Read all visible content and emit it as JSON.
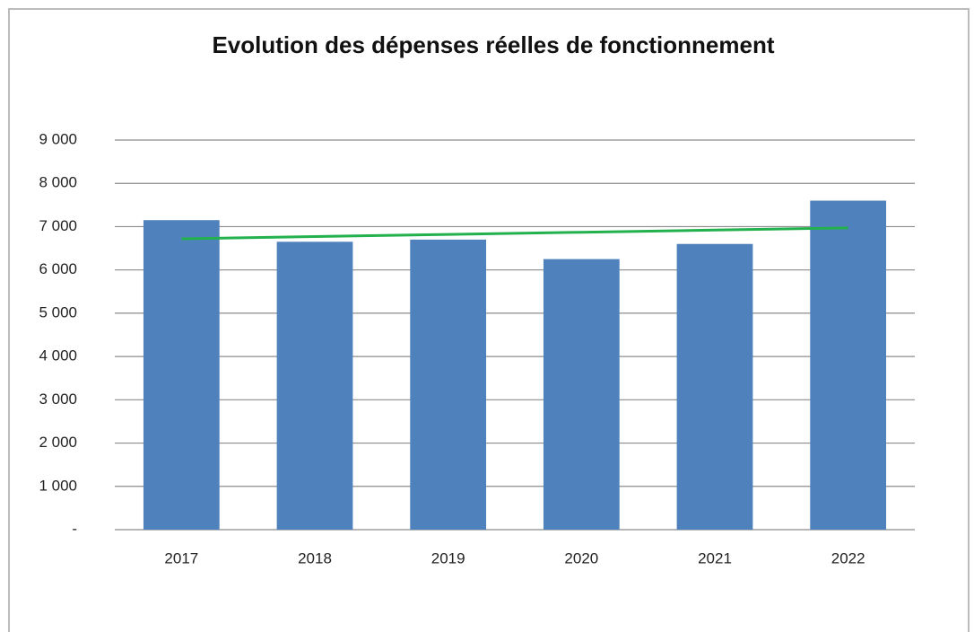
{
  "chart_data": {
    "type": "bar",
    "title": "Evolution des dépenses réelles de fonctionnement",
    "categories": [
      "2017",
      "2018",
      "2019",
      "2020",
      "2021",
      "2022"
    ],
    "values": [
      7150,
      6650,
      6700,
      6250,
      6600,
      7600
    ],
    "color": "#4f81bd",
    "trendline": {
      "color": "#22b14c",
      "values": [
        6720,
        6770,
        6820,
        6870,
        6920,
        6970
      ]
    },
    "ylim": [
      0,
      9000
    ],
    "yticks": [
      {
        "value": 0,
        "label": "-"
      },
      {
        "value": 1000,
        "label": "1 000"
      },
      {
        "value": 2000,
        "label": "2 000"
      },
      {
        "value": 3000,
        "label": "3 000"
      },
      {
        "value": 4000,
        "label": "4 000"
      },
      {
        "value": 5000,
        "label": "5 000"
      },
      {
        "value": 6000,
        "label": "6 000"
      },
      {
        "value": 7000,
        "label": "7 000"
      },
      {
        "value": 8000,
        "label": "8 000"
      },
      {
        "value": 9000,
        "label": "9 000"
      }
    ],
    "grid": true
  }
}
